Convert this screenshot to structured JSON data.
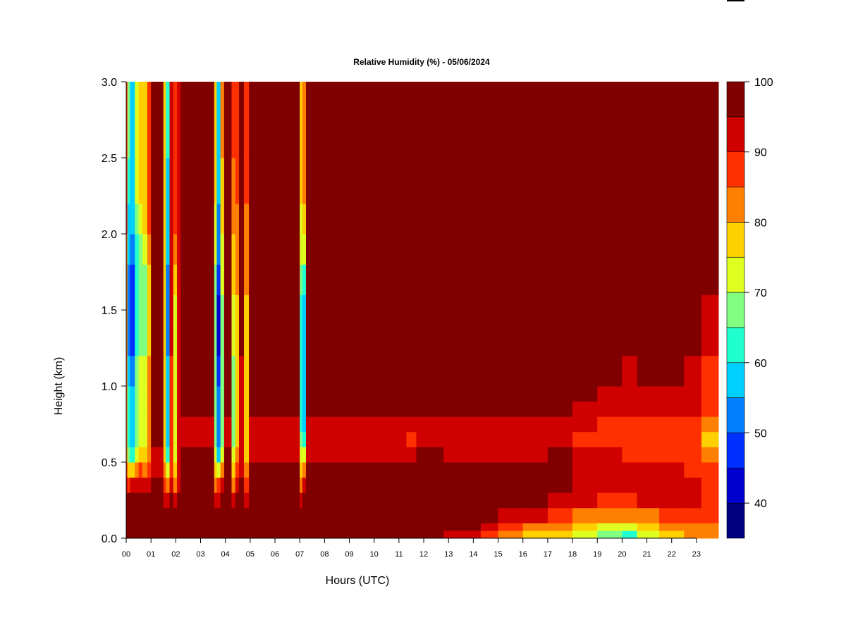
{
  "chart_data": {
    "type": "heatmap",
    "title": "Relative Humidity (%) - 05/06/2024",
    "xlabel": "Hours (UTC)",
    "ylabel": "Height (km)",
    "xlim": [
      0,
      23.9
    ],
    "ylim": [
      0,
      3.0
    ],
    "x_ticks": [
      "00",
      "01",
      "02",
      "03",
      "04",
      "05",
      "06",
      "07",
      "08",
      "09",
      "10",
      "11",
      "12",
      "13",
      "14",
      "15",
      "16",
      "17",
      "18",
      "19",
      "20",
      "21",
      "22",
      "23"
    ],
    "y_ticks": [
      "0.0",
      "0.5",
      "1.0",
      "1.5",
      "2.0",
      "2.5",
      "3.0"
    ],
    "colorbar": {
      "levels": [
        35,
        40,
        45,
        50,
        55,
        60,
        65,
        70,
        75,
        80,
        85,
        90,
        95,
        100
      ],
      "colors": [
        "#000080",
        "#0000D0",
        "#0030FF",
        "#0080FF",
        "#00D0FF",
        "#20FFD0",
        "#80FF80",
        "#DFFF20",
        "#FFD000",
        "#FF8000",
        "#FF3000",
        "#D00000",
        "#800000"
      ],
      "tick_labels": [
        "40",
        "50",
        "60",
        "70",
        "80",
        "90",
        "100"
      ]
    },
    "y_edges": [
      0,
      0.05,
      0.1,
      0.2,
      0.3,
      0.4,
      0.5,
      0.6,
      0.7,
      0.8,
      0.9,
      1.0,
      1.2,
      1.4,
      1.6,
      1.8,
      2.0,
      2.2,
      2.5,
      3.0
    ],
    "columns": [
      {
        "t": [
          0,
          0.05
        ],
        "rh": [
          98,
          98,
          98,
          98,
          92,
          88,
          83,
          83,
          83,
          83,
          83,
          83,
          83,
          83,
          83,
          83,
          88,
          88,
          88
        ]
      },
      {
        "t": [
          0.05,
          0.15
        ],
        "rh": [
          98,
          98,
          98,
          98,
          88,
          78,
          68,
          63,
          63,
          63,
          63,
          58,
          53,
          53,
          53,
          58,
          58,
          63,
          68
        ]
      },
      {
        "t": [
          0.15,
          0.35
        ],
        "rh": [
          98,
          98,
          98,
          98,
          92,
          78,
          63,
          58,
          58,
          58,
          58,
          53,
          48,
          48,
          48,
          53,
          58,
          58,
          58
        ]
      },
      {
        "t": [
          0.35,
          0.5
        ],
        "rh": [
          98,
          98,
          98,
          98,
          92,
          83,
          73,
          68,
          68,
          68,
          68,
          68,
          63,
          63,
          63,
          63,
          68,
          73,
          73
        ]
      },
      {
        "t": [
          0.5,
          0.65
        ],
        "rh": [
          98,
          98,
          98,
          98,
          92,
          88,
          78,
          73,
          73,
          73,
          73,
          73,
          68,
          68,
          68,
          68,
          73,
          78,
          78
        ]
      },
      {
        "t": [
          0.65,
          0.85
        ],
        "rh": [
          98,
          98,
          98,
          98,
          92,
          83,
          78,
          73,
          73,
          73,
          73,
          73,
          68,
          68,
          68,
          73,
          78,
          78,
          78
        ]
      },
      {
        "t": [
          0.85,
          1.0
        ],
        "rh": [
          98,
          98,
          98,
          98,
          92,
          88,
          83,
          83,
          83,
          83,
          83,
          83,
          78,
          78,
          78,
          83,
          88,
          88,
          88
        ]
      },
      {
        "t": [
          1.0,
          1.5
        ],
        "rh": [
          98,
          98,
          98,
          98,
          98,
          92,
          92,
          98,
          98,
          98,
          98,
          98,
          98,
          98,
          98,
          98,
          98,
          98,
          98
        ]
      },
      {
        "t": [
          1.5,
          1.6
        ],
        "rh": [
          98,
          98,
          98,
          92,
          88,
          83,
          78,
          78,
          78,
          78,
          78,
          78,
          78,
          78,
          78,
          78,
          78,
          78,
          78
        ]
      },
      {
        "t": [
          1.6,
          1.75
        ],
        "rh": [
          98,
          98,
          98,
          92,
          83,
          73,
          63,
          58,
          58,
          58,
          58,
          58,
          53,
          53,
          53,
          58,
          58,
          58,
          63
        ]
      },
      {
        "t": [
          1.75,
          1.9
        ],
        "rh": [
          98,
          98,
          98,
          98,
          92,
          88,
          88,
          88,
          88,
          88,
          88,
          88,
          92,
          92,
          92,
          92,
          92,
          92,
          92
        ]
      },
      {
        "t": [
          1.9,
          2.05
        ],
        "rh": [
          98,
          98,
          98,
          92,
          83,
          78,
          73,
          73,
          73,
          73,
          73,
          73,
          73,
          73,
          78,
          83,
          88,
          88,
          88
        ]
      },
      {
        "t": [
          2.05,
          2.2
        ],
        "rh": [
          98,
          98,
          98,
          98,
          92,
          92,
          92,
          92,
          92,
          92,
          92,
          92,
          92,
          92,
          92,
          92,
          92,
          92,
          92
        ]
      },
      {
        "t": [
          2.2,
          3.55
        ],
        "rh": [
          98,
          98,
          98,
          98,
          98,
          98,
          98,
          92,
          92,
          98,
          98,
          98,
          98,
          98,
          98,
          98,
          98,
          98,
          98
        ]
      },
      {
        "t": [
          3.55,
          3.65
        ],
        "rh": [
          98,
          98,
          98,
          92,
          83,
          78,
          73,
          68,
          68,
          68,
          68,
          68,
          68,
          68,
          68,
          73,
          73,
          78,
          78
        ]
      },
      {
        "t": [
          3.65,
          3.8
        ],
        "rh": [
          98,
          98,
          98,
          92,
          88,
          73,
          58,
          53,
          53,
          53,
          53,
          48,
          43,
          43,
          48,
          53,
          53,
          58,
          58
        ]
      },
      {
        "t": [
          3.8,
          3.95
        ],
        "rh": [
          98,
          98,
          98,
          98,
          92,
          83,
          73,
          68,
          68,
          68,
          68,
          68,
          68,
          68,
          73,
          73,
          78,
          78,
          83
        ]
      },
      {
        "t": [
          3.95,
          4.25
        ],
        "rh": [
          98,
          98,
          98,
          98,
          98,
          98,
          98,
          92,
          92,
          98,
          98,
          98,
          98,
          98,
          98,
          98,
          98,
          98,
          98
        ]
      },
      {
        "t": [
          4.25,
          4.4
        ],
        "rh": [
          98,
          98,
          98,
          92,
          83,
          78,
          73,
          68,
          68,
          68,
          68,
          68,
          73,
          73,
          78,
          78,
          83,
          83,
          88
        ]
      },
      {
        "t": [
          4.4,
          4.55
        ],
        "rh": [
          98,
          98,
          98,
          98,
          92,
          88,
          83,
          78,
          78,
          78,
          78,
          78,
          78,
          78,
          83,
          83,
          83,
          88,
          88
        ]
      },
      {
        "t": [
          4.55,
          4.75
        ],
        "rh": [
          98,
          98,
          98,
          98,
          98,
          92,
          92,
          92,
          92,
          92,
          92,
          92,
          98,
          98,
          98,
          98,
          98,
          98,
          98
        ]
      },
      {
        "t": [
          4.75,
          4.95
        ],
        "rh": [
          98,
          98,
          98,
          92,
          88,
          83,
          78,
          78,
          78,
          78,
          78,
          78,
          78,
          78,
          83,
          83,
          83,
          88,
          88
        ]
      },
      {
        "t": [
          4.95,
          7.0
        ],
        "rh": [
          98,
          98,
          98,
          98,
          98,
          98,
          92,
          92,
          92,
          98,
          98,
          98,
          98,
          98,
          98,
          98,
          98,
          98,
          98
        ]
      },
      {
        "t": [
          7.0,
          7.1
        ],
        "rh": [
          98,
          98,
          98,
          92,
          83,
          78,
          73,
          68,
          63,
          63,
          63,
          63,
          63,
          63,
          68,
          73,
          73,
          78,
          78
        ]
      },
      {
        "t": [
          7.1,
          7.25
        ],
        "rh": [
          98,
          98,
          98,
          98,
          92,
          83,
          73,
          63,
          58,
          58,
          58,
          58,
          58,
          58,
          63,
          73,
          78,
          83,
          83
        ]
      },
      {
        "t": [
          7.25,
          11.3
        ],
        "rh": [
          98,
          98,
          98,
          98,
          98,
          98,
          92,
          92,
          92,
          98,
          98,
          98,
          98,
          98,
          98,
          98,
          98,
          98,
          98
        ]
      },
      {
        "t": [
          11.3,
          11.7
        ],
        "rh": [
          98,
          98,
          98,
          98,
          98,
          98,
          92,
          88,
          92,
          98,
          98,
          98,
          98,
          98,
          98,
          98,
          98,
          98,
          98
        ]
      },
      {
        "t": [
          11.7,
          12.8
        ],
        "rh": [
          98,
          98,
          98,
          98,
          98,
          98,
          98,
          92,
          92,
          98,
          98,
          98,
          98,
          98,
          98,
          98,
          98,
          98,
          98
        ]
      },
      {
        "t": [
          12.8,
          14.3
        ],
        "rh": [
          92,
          98,
          98,
          98,
          98,
          98,
          92,
          92,
          92,
          98,
          98,
          98,
          98,
          98,
          98,
          98,
          98,
          98,
          98
        ]
      },
      {
        "t": [
          14.3,
          15.0
        ],
        "rh": [
          88,
          92,
          98,
          98,
          98,
          98,
          92,
          92,
          92,
          98,
          98,
          98,
          98,
          98,
          98,
          98,
          98,
          98,
          98
        ]
      },
      {
        "t": [
          15.0,
          16.0
        ],
        "rh": [
          83,
          88,
          92,
          98,
          98,
          98,
          92,
          92,
          92,
          98,
          98,
          98,
          98,
          98,
          98,
          98,
          98,
          98,
          98
        ]
      },
      {
        "t": [
          16.0,
          17.0
        ],
        "rh": [
          78,
          83,
          92,
          98,
          98,
          98,
          92,
          92,
          92,
          98,
          98,
          98,
          98,
          98,
          98,
          98,
          98,
          98,
          98
        ]
      },
      {
        "t": [
          17.0,
          18.0
        ],
        "rh": [
          78,
          83,
          88,
          92,
          98,
          98,
          98,
          92,
          92,
          98,
          98,
          98,
          98,
          98,
          98,
          98,
          98,
          98,
          98
        ]
      },
      {
        "t": [
          18.0,
          19.0
        ],
        "rh": [
          73,
          78,
          83,
          92,
          92,
          92,
          92,
          88,
          92,
          92,
          98,
          98,
          98,
          98,
          98,
          98,
          98,
          98,
          98
        ]
      },
      {
        "t": [
          19.0,
          20.0
        ],
        "rh": [
          68,
          73,
          83,
          88,
          92,
          92,
          92,
          88,
          88,
          92,
          92,
          98,
          98,
          98,
          98,
          98,
          98,
          98,
          98
        ]
      },
      {
        "t": [
          20.0,
          20.6
        ],
        "rh": [
          63,
          73,
          83,
          88,
          92,
          92,
          88,
          88,
          88,
          92,
          92,
          92,
          98,
          98,
          98,
          98,
          98,
          98,
          98
        ]
      },
      {
        "t": [
          20.6,
          21.5
        ],
        "rh": [
          73,
          78,
          83,
          92,
          92,
          92,
          88,
          88,
          88,
          92,
          92,
          98,
          98,
          98,
          98,
          98,
          98,
          98,
          98
        ]
      },
      {
        "t": [
          21.5,
          22.5
        ],
        "rh": [
          78,
          83,
          88,
          92,
          92,
          92,
          88,
          88,
          88,
          92,
          92,
          98,
          98,
          98,
          98,
          98,
          98,
          98,
          98
        ]
      },
      {
        "t": [
          22.5,
          23.2
        ],
        "rh": [
          83,
          83,
          88,
          92,
          92,
          88,
          88,
          88,
          88,
          92,
          92,
          92,
          98,
          98,
          98,
          98,
          98,
          98,
          98
        ]
      },
      {
        "t": [
          23.2,
          23.9
        ],
        "rh": [
          83,
          83,
          88,
          88,
          88,
          88,
          83,
          78,
          83,
          88,
          88,
          88,
          92,
          92,
          98,
          98,
          98,
          98,
          98
        ]
      }
    ]
  }
}
